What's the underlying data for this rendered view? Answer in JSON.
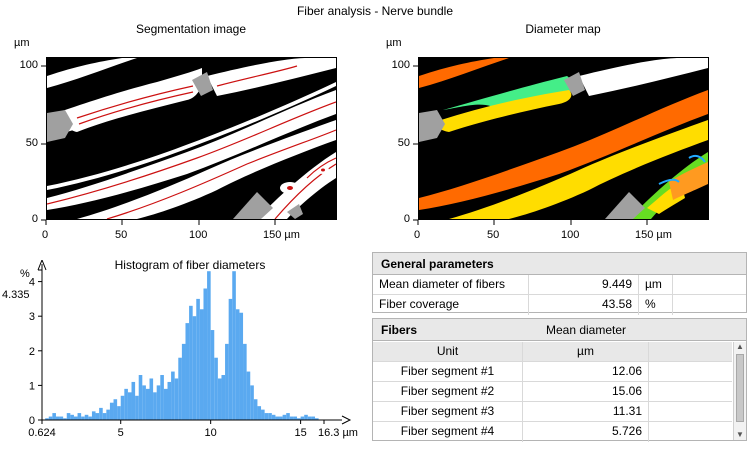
{
  "window": {
    "title": "Fiber analysis - Nerve bundle"
  },
  "segmentation": {
    "title": "Segmentation image",
    "y_unit": "µm",
    "y_ticks": [
      "0",
      "50",
      "100"
    ],
    "x_ticks": [
      "0",
      "50",
      "100",
      "150 µm"
    ]
  },
  "diameter_map": {
    "title": "Diameter map",
    "y_unit": "µm",
    "y_ticks": [
      "0",
      "50",
      "100"
    ],
    "x_ticks": [
      "0",
      "50",
      "100",
      "150 µm"
    ]
  },
  "histogram": {
    "title": "Histogram of fiber diameters",
    "y_unit": "%",
    "y_max_label": "4.335",
    "y_ticks": [
      "0",
      "1",
      "2",
      "3",
      "4"
    ],
    "x_ticks": [
      "0.624",
      "5",
      "10",
      "15",
      "16.3 µm"
    ]
  },
  "chart_data": {
    "type": "bar",
    "title": "Histogram of fiber diameters",
    "xlabel": "µm",
    "ylabel": "%",
    "xlim": [
      0.624,
      16.3
    ],
    "ylim": [
      0,
      4.335
    ],
    "bar_color": "#5aa9f0",
    "x": [
      0.9,
      1.1,
      1.3,
      1.5,
      1.7,
      1.9,
      2.1,
      2.3,
      2.5,
      2.7,
      2.9,
      3.1,
      3.3,
      3.5,
      3.7,
      3.9,
      4.1,
      4.3,
      4.5,
      4.7,
      4.9,
      5.1,
      5.3,
      5.5,
      5.7,
      5.9,
      6.1,
      6.3,
      6.5,
      6.7,
      6.9,
      7.1,
      7.3,
      7.5,
      7.7,
      7.9,
      8.1,
      8.3,
      8.5,
      8.7,
      8.9,
      9.1,
      9.3,
      9.5,
      9.7,
      9.9,
      10.1,
      10.3,
      10.5,
      10.7,
      10.9,
      11.1,
      11.3,
      11.5,
      11.7,
      11.9,
      12.1,
      12.3,
      12.5,
      12.7,
      12.9,
      13.1,
      13.3,
      13.5,
      13.7,
      13.9,
      14.1,
      14.3,
      14.5,
      14.7,
      14.9,
      15.1,
      15.3,
      15.5,
      15.7,
      15.9
    ],
    "values": [
      0.05,
      0.1,
      0.2,
      0.1,
      0.1,
      0.05,
      0.2,
      0.15,
      0.1,
      0.2,
      0.1,
      0.15,
      0.1,
      0.25,
      0.2,
      0.35,
      0.2,
      0.3,
      0.5,
      0.6,
      0.4,
      0.7,
      0.9,
      0.8,
      1.1,
      0.7,
      1.3,
      1.0,
      0.9,
      1.2,
      0.8,
      1.0,
      1.3,
      0.9,
      1.1,
      1.4,
      1.2,
      1.8,
      2.2,
      2.8,
      3.3,
      3.0,
      3.5,
      3.2,
      3.8,
      4.3,
      2.6,
      1.8,
      1.2,
      1.3,
      2.2,
      3.5,
      4.3,
      3.2,
      3.1,
      2.2,
      1.4,
      1.0,
      0.6,
      0.4,
      0.3,
      0.2,
      0.2,
      0.15,
      0.1,
      0.1,
      0.15,
      0.2,
      0.1,
      0.1,
      0.05,
      0.1,
      0.15,
      0.1,
      0.1,
      0.05
    ]
  },
  "general": {
    "header": "General parameters",
    "rows": [
      {
        "label": "Mean diameter of fibers",
        "value": "9.449",
        "unit": "µm"
      },
      {
        "label": "Fiber coverage",
        "value": "43.58",
        "unit": "%"
      }
    ]
  },
  "fibers": {
    "header": "Fibers",
    "column_header": "Mean diameter",
    "sub_headers": {
      "name": "Unit",
      "value": "µm"
    },
    "rows": [
      {
        "name": "Fiber segment #1",
        "value": "12.06"
      },
      {
        "name": "Fiber segment #2",
        "value": "15.06"
      },
      {
        "name": "Fiber segment #3",
        "value": "11.31"
      },
      {
        "name": "Fiber segment #4",
        "value": "5.726"
      }
    ]
  },
  "colors": {
    "segmentation_bg": "#000000",
    "fiber": "#ffffff",
    "fiber_centerline": "#cc1111",
    "gap": "#a0a0a0",
    "diam_orange": "#ff6a00",
    "diam_yellow": "#ffdd00",
    "diam_green": "#44ee88",
    "diam_lime": "#66dd22"
  }
}
